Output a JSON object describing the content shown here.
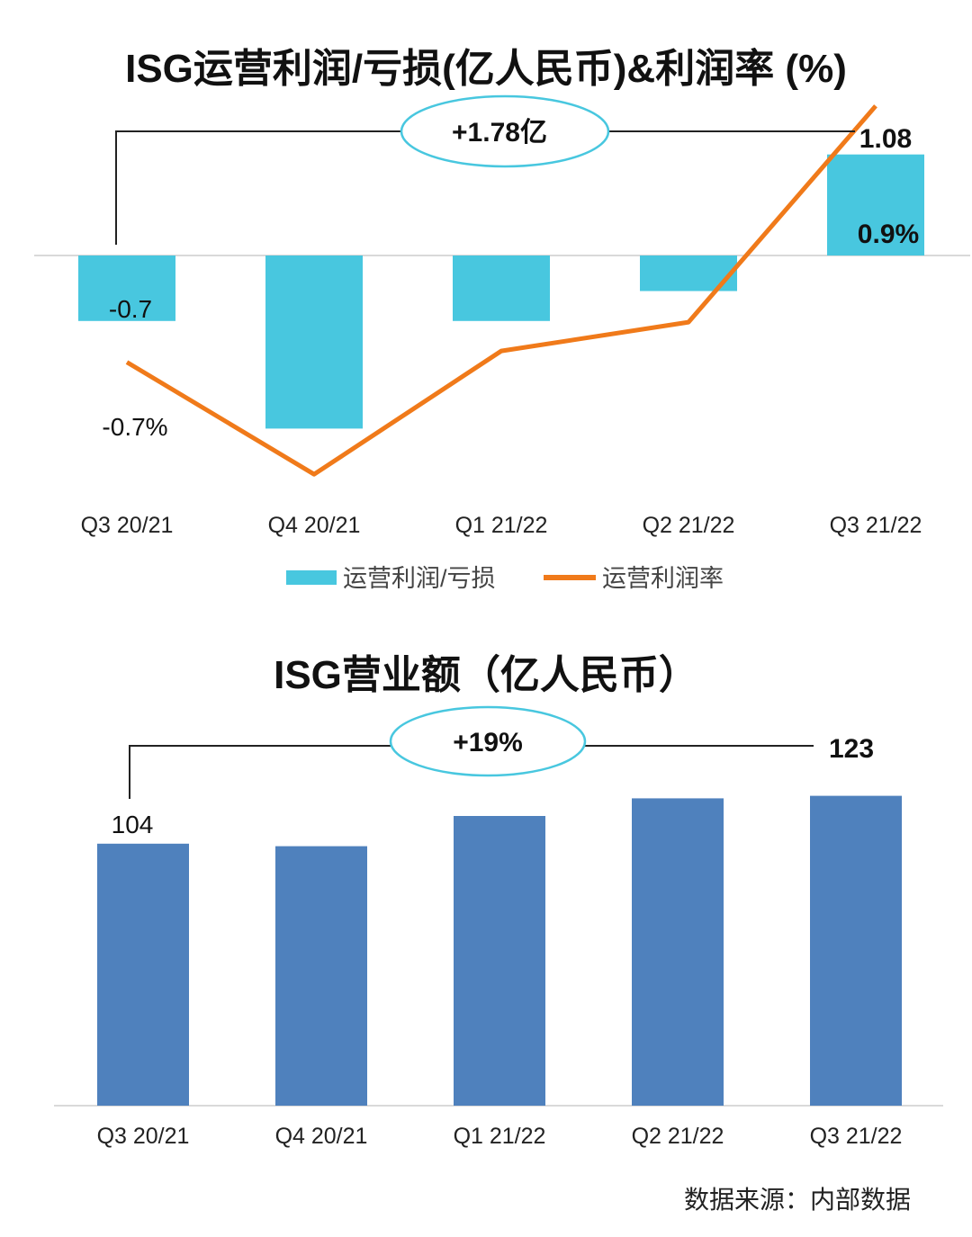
{
  "chart_data": [
    {
      "type": "bar",
      "title": "ISG运营利润/亏损(亿人民币)&利润率 (%)",
      "categories": [
        "Q3 20/21",
        "Q4 20/21",
        "Q1 21/22",
        "Q2 21/22",
        "Q3 21/22"
      ],
      "series": [
        {
          "name": "运营利润/亏损",
          "type": "bar",
          "color": "#48c7df",
          "values": [
            -0.7,
            -1.85,
            -0.7,
            -0.38,
            1.08
          ]
        },
        {
          "name": "运营利润率",
          "type": "line",
          "color": "#f07a1a",
          "values": [
            -0.7,
            -1.4,
            -0.63,
            -0.45,
            0.9
          ]
        }
      ],
      "data_labels": {
        "bar_first": "-0.7",
        "bar_last": "1.08",
        "line_first": "-0.7%",
        "line_last": "0.9%"
      },
      "annotation": "+1.78亿",
      "legend": "bottom"
    },
    {
      "type": "bar",
      "title": "ISG营业额（亿人民币）",
      "categories": [
        "Q3 20/21",
        "Q4 20/21",
        "Q1 21/22",
        "Q2 21/22",
        "Q3 21/22"
      ],
      "series": [
        {
          "type": "bar",
          "color": "#4f81bd",
          "values": [
            104,
            103,
            115,
            122,
            123
          ]
        }
      ],
      "data_labels": {
        "first": "104",
        "last": "123"
      },
      "annotation": "+19%"
    }
  ],
  "source": "数据来源：内部数据"
}
